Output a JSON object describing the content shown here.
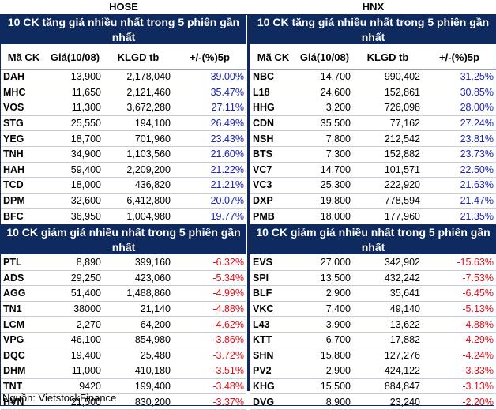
{
  "hose": {
    "exchange": "HOSE",
    "gainers": {
      "title": "10 CK tăng giá nhiều nhất trong 5 phiên gần nhất",
      "headers": [
        "Mã CK",
        "Giá(10/08)",
        "KLGD tb",
        "+/-(%)5p"
      ],
      "rows": [
        [
          "DAH",
          "13,900",
          "2,178,040",
          "39.00%"
        ],
        [
          "MHC",
          "11,650",
          "2,121,460",
          "35.47%"
        ],
        [
          "VOS",
          "11,300",
          "3,672,280",
          "27.11%"
        ],
        [
          "STG",
          "25,550",
          "194,100",
          "26.49%"
        ],
        [
          "YEG",
          "18,700",
          "701,960",
          "23.43%"
        ],
        [
          "TNH",
          "34,900",
          "1,103,560",
          "21.60%"
        ],
        [
          "HAH",
          "59,400",
          "2,209,200",
          "21.22%"
        ],
        [
          "TCD",
          "18,000",
          "436,820",
          "21.21%"
        ],
        [
          "DPM",
          "32,600",
          "6,412,800",
          "20.07%"
        ],
        [
          "BFC",
          "36,950",
          "1,004,980",
          "19.77%"
        ]
      ]
    },
    "losers": {
      "title": "10 CK giảm giá nhiều nhất trong 5 phiên gần nhất",
      "rows": [
        [
          "PTL",
          "8,890",
          "399,160",
          "-6.32%"
        ],
        [
          "ADS",
          "29,250",
          "423,060",
          "-5.34%"
        ],
        [
          "AGG",
          "51,400",
          "1,488,860",
          "-4.99%"
        ],
        [
          "TN1",
          "38000",
          "21,140",
          "-4.88%"
        ],
        [
          "LCM",
          "2,270",
          "64,200",
          "-4.62%"
        ],
        [
          "VPG",
          "46,100",
          "854,980",
          "-3.86%"
        ],
        [
          "DQC",
          "19,400",
          "25,480",
          "-3.72%"
        ],
        [
          "DHM",
          "11,000",
          "410,180",
          "-3.51%"
        ],
        [
          "TNT",
          "9420",
          "199,400",
          "-3.48%"
        ],
        [
          "HVN",
          "21,500",
          "830,200",
          "-3.37%"
        ]
      ]
    }
  },
  "hnx": {
    "exchange": "HNX",
    "gainers": {
      "title": "10 CK tăng giá nhiều nhất trong 5 phiên gần nhất",
      "headers": [
        "Mã CK",
        "Giá(10/08)",
        "KLGD tb",
        "+/-(%)5p"
      ],
      "rows": [
        [
          "NBC",
          "14,700",
          "990,402",
          "31.25%"
        ],
        [
          "L18",
          "24,600",
          "152,861",
          "30.85%"
        ],
        [
          "HHG",
          "3,200",
          "726,098",
          "28.00%"
        ],
        [
          "CDN",
          "35,500",
          "77,162",
          "27.24%"
        ],
        [
          "NSH",
          "7,800",
          "212,542",
          "23.81%"
        ],
        [
          "BTS",
          "7,300",
          "152,882",
          "23.73%"
        ],
        [
          "VC7",
          "14,700",
          "101,571",
          "22.50%"
        ],
        [
          "VC3",
          "25,300",
          "222,920",
          "21.63%"
        ],
        [
          "DXP",
          "19,800",
          "778,594",
          "21.47%"
        ],
        [
          "PMB",
          "18,000",
          "177,960",
          "21.35%"
        ]
      ]
    },
    "losers": {
      "title": "10 CK giảm giá nhiều nhất trong 5 phiên gần nhất",
      "rows": [
        [
          "EVS",
          "27,000",
          "342,902",
          "-15.63%"
        ],
        [
          "SPI",
          "13,500",
          "432,242",
          "-7.53%"
        ],
        [
          "BLF",
          "2,900",
          "35,641",
          "-6.45%"
        ],
        [
          "VKC",
          "7,400",
          "49,140",
          "-5.13%"
        ],
        [
          "L43",
          "3,900",
          "13,622",
          "-4.88%"
        ],
        [
          "KTT",
          "6,700",
          "17,882",
          "-4.29%"
        ],
        [
          "SHN",
          "15,800",
          "127,276",
          "-4.24%"
        ],
        [
          "PV2",
          "2,900",
          "424,122",
          "-3.33%"
        ],
        [
          "KHG",
          "15,500",
          "884,847",
          "-3.13%"
        ],
        [
          "DVG",
          "8,900",
          "23,240",
          "-2.20%"
        ]
      ]
    }
  },
  "source": "Nguồn: VietstockFinance",
  "colors": {
    "header_bg": "#0f2a5e",
    "positive": "#1a22b8",
    "negative": "#e0101a"
  }
}
